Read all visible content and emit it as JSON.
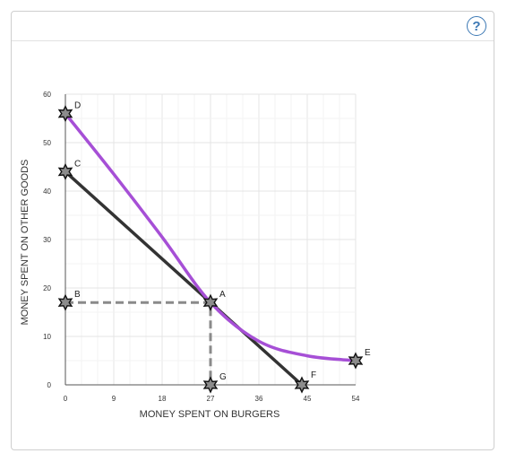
{
  "header": {
    "help_label": "?"
  },
  "colors": {
    "budget_line": "#333333",
    "indifference_curve": "#a64fd6",
    "dashed_guides": "#8a8a8a",
    "point_fill": "#8c8c8c",
    "point_stroke": "#111111",
    "grid": "#ececec",
    "help_accent": "#3b78b4"
  },
  "chart_data": {
    "type": "line",
    "xlabel": "MONEY SPENT ON BURGERS",
    "ylabel": "MONEY SPENT ON OTHER GOODS",
    "xlim": [
      0,
      54
    ],
    "ylim": [
      0,
      60
    ],
    "xticks": [
      0,
      9,
      18,
      27,
      36,
      45,
      54
    ],
    "yticks": [
      0,
      10,
      20,
      30,
      40,
      50,
      60
    ],
    "grid": true,
    "series": [
      {
        "role": "budget-line",
        "points": [
          [
            0,
            44
          ],
          [
            27,
            17
          ],
          [
            44,
            0
          ]
        ]
      },
      {
        "role": "indifference-curve",
        "points": [
          [
            0,
            56
          ],
          [
            9,
            43.5
          ],
          [
            18,
            30.5
          ],
          [
            27,
            17
          ],
          [
            36,
            9
          ],
          [
            45,
            6
          ],
          [
            54,
            5
          ]
        ]
      },
      {
        "role": "dashed-guides",
        "points": [
          [
            0,
            17
          ],
          [
            27,
            17
          ],
          [
            27,
            0
          ]
        ]
      }
    ],
    "points": [
      {
        "label": "D",
        "x": 0,
        "y": 56
      },
      {
        "label": "C",
        "x": 0,
        "y": 44
      },
      {
        "label": "B",
        "x": 0,
        "y": 17
      },
      {
        "label": "A",
        "x": 27,
        "y": 17
      },
      {
        "label": "G",
        "x": 27,
        "y": 0
      },
      {
        "label": "F",
        "x": 44,
        "y": 0
      },
      {
        "label": "E",
        "x": 54,
        "y": 5
      }
    ]
  }
}
